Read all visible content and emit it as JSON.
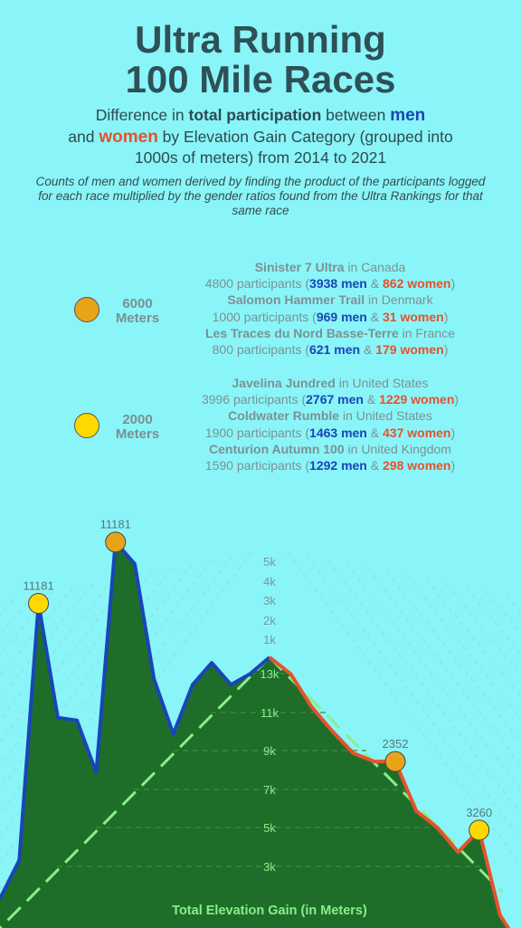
{
  "header": {
    "title_line1": "Ultra Running",
    "title_line2": "100 Mile Races",
    "subtitle_p1": "Difference in ",
    "subtitle_bold": "total participation",
    "subtitle_p2": " between ",
    "subtitle_men": "men",
    "subtitle_p3": "and ",
    "subtitle_women": "women",
    "subtitle_p4": " by Elevation Gain Category (grouped into 1000s of meters) from 2014 to 2021",
    "note": "Counts of men and women derived by finding the product of the participants logged for each race multiplied by the gender ratios found from the Ultra Rankings for that same race"
  },
  "legend_text": {
    "in": " in ",
    "participants": " participants (",
    "men": " men",
    "amp": " & ",
    "women": " women",
    "close": ")"
  },
  "categories": [
    {
      "label_value": "6000",
      "label_unit": "Meters",
      "dot_color": "#e8a417",
      "races": [
        {
          "name": "Sinister 7 Ultra",
          "country": "Canada",
          "participants": "4800",
          "men": "3938",
          "women": "862"
        },
        {
          "name": "Salomon Hammer Trail",
          "country": "Denmark",
          "participants": "1000",
          "men": "969",
          "women": "31"
        },
        {
          "name": "Les Traces du Nord Basse-Terre",
          "country": "France",
          "participants": "800",
          "men": "621",
          "women": "179"
        }
      ]
    },
    {
      "label_value": "2000",
      "label_unit": "Meters",
      "dot_color": "#ffd800",
      "races": [
        {
          "name": "Javelina Jundred",
          "country": "United States",
          "participants": "3996",
          "men": "2767",
          "women": "1229"
        },
        {
          "name": "Coldwater Rumble",
          "country": "United States",
          "participants": "1900",
          "men": "1463",
          "women": "437"
        },
        {
          "name": "Centurion Autumn 100",
          "country": "United Kingdom",
          "participants": "1590",
          "men": "1292",
          "women": "298"
        }
      ]
    }
  ],
  "chart_data": {
    "type": "area",
    "xlabel": "Total Elevation Gain (in Meters)",
    "colors": {
      "men": "#1a45b8",
      "women": "#e5522c",
      "area": "#1e6e2a",
      "axis": "#8aee8a",
      "background": "#8af5f8"
    },
    "top_ticks": [
      "5k",
      "4k",
      "3k",
      "2k",
      "1k"
    ],
    "elevation_ticks": [
      "13k",
      "11k",
      "9k",
      "7k",
      "5k",
      "3k"
    ],
    "series": [
      {
        "name": "men",
        "values": [
          5800,
          6500,
          11181,
          9100,
          9050,
          8100,
          12300,
          11900,
          9800,
          8800,
          9700,
          10100,
          9700,
          9900,
          10200
        ],
        "highlights": [
          {
            "index": 2,
            "label": "11181",
            "color": "#ffd800"
          },
          {
            "index": 6,
            "label": "11181",
            "color": "#e8a417"
          }
        ]
      },
      {
        "name": "women",
        "values": [
          10200,
          9900,
          9300,
          8850,
          8450,
          8300,
          8300,
          7400,
          7100,
          6650,
          7050,
          5500,
          4900
        ],
        "highlights": [
          {
            "index": 6,
            "label": "2352",
            "color": "#e8a417"
          },
          {
            "index": 10,
            "label": "3260",
            "color": "#ffd800"
          }
        ]
      }
    ]
  }
}
